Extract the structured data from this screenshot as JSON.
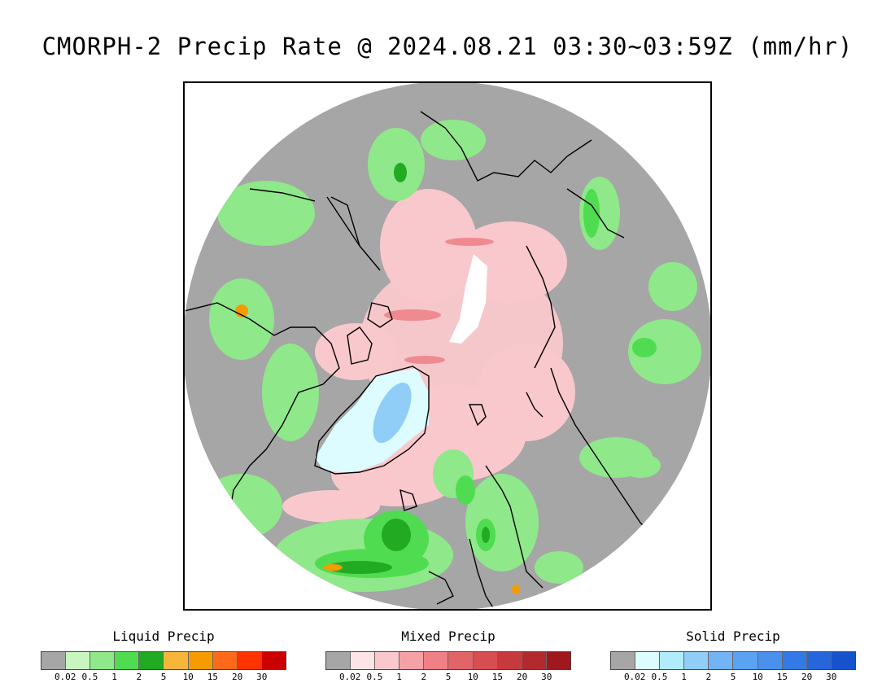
{
  "title": "CMORPH-2 Precip Rate @ 2024.08.21 03:30~03:59Z (mm/hr)",
  "colors": {
    "no_precip": "#a6a6a6",
    "map_border": "#000000",
    "coastline": "#000000"
  },
  "legends": [
    {
      "title": "Liquid Precip",
      "ticks": [
        "0.02",
        "0.5",
        "1",
        "2",
        "5",
        "10",
        "15",
        "20",
        "30"
      ],
      "colors": [
        "#a6a6a6",
        "#c8f5c0",
        "#8fe88a",
        "#50dc50",
        "#22aa22",
        "#f5b63a",
        "#f59b00",
        "#ff6a1a",
        "#ff3300",
        "#cc0000"
      ]
    },
    {
      "title": "Mixed Precip",
      "ticks": [
        "0.02",
        "0.5",
        "1",
        "2",
        "5",
        "10",
        "15",
        "20",
        "30"
      ],
      "colors": [
        "#a6a6a6",
        "#fde4e6",
        "#f9c8cc",
        "#f4a2a8",
        "#ee8086",
        "#e06468",
        "#d64e52",
        "#c63a3e",
        "#b22a2e",
        "#a0181e"
      ]
    },
    {
      "title": "Solid Precip",
      "ticks": [
        "0.02",
        "0.5",
        "1",
        "2",
        "5",
        "10",
        "15",
        "20",
        "30"
      ],
      "colors": [
        "#a6a6a6",
        "#dcfcff",
        "#b0ecfa",
        "#90cdf7",
        "#72b4f5",
        "#5aa2f2",
        "#4a91ee",
        "#3479e8",
        "#2566dc",
        "#1652cc"
      ]
    }
  ]
}
